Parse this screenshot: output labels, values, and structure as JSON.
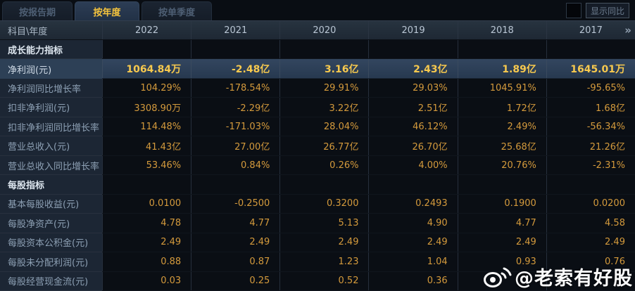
{
  "tabs": [
    {
      "label": "按报告期",
      "active": false
    },
    {
      "label": "按年度",
      "active": true
    },
    {
      "label": "按单季度",
      "active": false
    }
  ],
  "controls": {
    "show_yoy_label": "显示同比",
    "checkbox_checked": false
  },
  "table": {
    "corner_header": "科目\\年度",
    "year_columns": [
      "2022",
      "2021",
      "2020",
      "2019",
      "2018",
      "2017"
    ],
    "more_icon": "»",
    "rows": [
      {
        "type": "section",
        "label": "成长能力指标",
        "values": [
          "",
          "",
          "",
          "",
          "",
          ""
        ]
      },
      {
        "type": "data",
        "highlight": true,
        "label": "净利润(元)",
        "values": [
          "1064.84万",
          "-2.48亿",
          "3.16亿",
          "2.43亿",
          "1.89亿",
          "1645.01万"
        ]
      },
      {
        "type": "data",
        "label": "净利润同比增长率",
        "values": [
          "104.29%",
          "-178.54%",
          "29.91%",
          "29.03%",
          "1045.91%",
          "-95.65%"
        ]
      },
      {
        "type": "data",
        "label": "扣非净利润(元)",
        "values": [
          "3308.90万",
          "-2.29亿",
          "3.22亿",
          "2.51亿",
          "1.72亿",
          "1.68亿"
        ]
      },
      {
        "type": "data",
        "label": "扣非净利润同比增长率",
        "values": [
          "114.48%",
          "-171.03%",
          "28.04%",
          "46.12%",
          "2.49%",
          "-56.34%"
        ]
      },
      {
        "type": "data",
        "label": "营业总收入(元)",
        "values": [
          "41.43亿",
          "27.00亿",
          "26.77亿",
          "26.70亿",
          "25.68亿",
          "21.26亿"
        ]
      },
      {
        "type": "data",
        "label": "营业总收入同比增长率",
        "values": [
          "53.46%",
          "0.84%",
          "0.26%",
          "4.00%",
          "20.76%",
          "-2.31%"
        ]
      },
      {
        "type": "section",
        "label": "每股指标",
        "values": [
          "",
          "",
          "",
          "",
          "",
          ""
        ]
      },
      {
        "type": "data",
        "label": "基本每股收益(元)",
        "values": [
          "0.0100",
          "-0.2500",
          "0.3200",
          "0.2493",
          "0.1900",
          "0.0200"
        ]
      },
      {
        "type": "data",
        "label": "每股净资产(元)",
        "values": [
          "4.78",
          "4.77",
          "5.13",
          "4.90",
          "4.77",
          "4.58"
        ]
      },
      {
        "type": "data",
        "label": "每股资本公积金(元)",
        "values": [
          "2.49",
          "2.49",
          "2.49",
          "2.49",
          "2.49",
          "2.49"
        ]
      },
      {
        "type": "data",
        "label": "每股未分配利润(元)",
        "values": [
          "0.88",
          "0.87",
          "1.23",
          "1.04",
          "0.93",
          "0.76"
        ]
      },
      {
        "type": "data",
        "label": "每股经营现金流(元)",
        "values": [
          "0.03",
          "0.25",
          "0.52",
          "0.36",
          "",
          ""
        ]
      }
    ]
  },
  "watermark": {
    "text": "@老索有好股",
    "icon": "weibo-logo"
  },
  "colors": {
    "value_gold": "#d49a3c",
    "highlight_gold": "#f7c94e",
    "active_tab_text": "#f4c33d",
    "row_highlight_bg": "#2d4056",
    "header_bg": "#222d3a",
    "label_col_bg": "#1c2634"
  }
}
